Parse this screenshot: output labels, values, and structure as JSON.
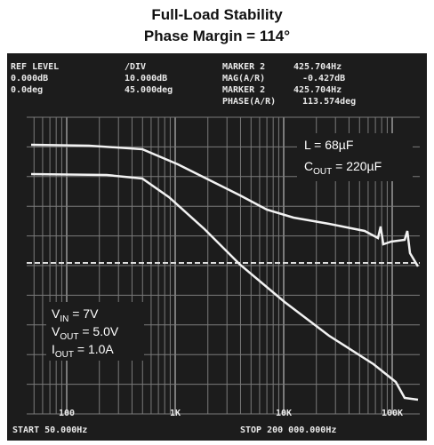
{
  "header": {
    "title": "Full-Load Stability",
    "subtitle": "Phase Margin = 114°"
  },
  "screen": {
    "rows": [
      [
        "REF LEVEL",
        "/DIV",
        "MARKER 2",
        "425.704Hz"
      ],
      [
        "0.000dB",
        "10.000dB",
        "MAG(A/R)",
        "-0.427dB"
      ],
      [
        "0.0deg",
        "45.000deg",
        "MARKER 2",
        "425.704Hz"
      ],
      [
        "",
        "",
        "PHASE(A/R)",
        "113.574deg"
      ]
    ],
    "x_labels": [
      "100",
      "1K",
      "10K",
      "100K"
    ],
    "start": "START 50.000Hz",
    "stop": "STOP 200 000.000Hz"
  },
  "annotations": {
    "inductor": "L = 68µF",
    "cout": {
      "base": "C",
      "sub": "OUT",
      "rest": " = 220µF"
    },
    "vin": {
      "base": "V",
      "sub": "IN",
      "rest": " = 7V"
    },
    "vout": {
      "base": "V",
      "sub": "OUT",
      "rest": " = 5.0V"
    },
    "iout": {
      "base": "I",
      "sub": "OUT",
      "rest": " = 1.0A"
    }
  }
}
